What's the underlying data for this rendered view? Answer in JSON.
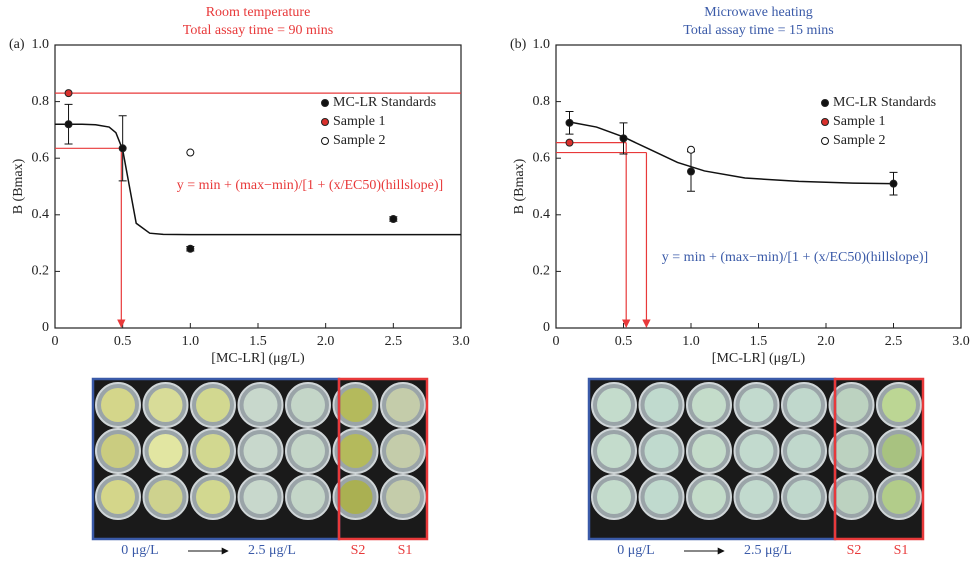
{
  "chart_data": [
    {
      "type": "scatter",
      "panel": "(a)",
      "title": "Room temperature",
      "subtitle": "Total assay time = 90 mins",
      "title_color": "#e8393a",
      "x_label": "[MC-LR] (μg/L)",
      "y_label": "B (Bmax)",
      "xlim": [
        0,
        3
      ],
      "xticks": [
        0,
        0.5,
        {
          "value": 1,
          "label": "1.0"
        },
        1.5,
        {
          "value": 2,
          "label": "2.0"
        },
        2.5,
        {
          "value": 3,
          "label": "3.0"
        }
      ],
      "ylim": [
        0,
        1
      ],
      "yticks": [
        0,
        0.2,
        0.4,
        0.6,
        0.8,
        {
          "value": 1,
          "label": "1.0"
        }
      ],
      "legend": "upper right",
      "series": [
        {
          "name": "MC-LR Standards",
          "color": "#111111",
          "marker": "filled",
          "x": [
            0.1,
            0.5,
            1.0,
            2.5
          ],
          "values": [
            0.72,
            0.635,
            0.28,
            0.385
          ],
          "errors": [
            0.07,
            0.115,
            0.008,
            0.008
          ]
        },
        {
          "name": "Sample 1",
          "color": "#d9302c",
          "marker": "filled",
          "x": [
            0.1
          ],
          "values": [
            0.83
          ]
        },
        {
          "name": "Sample 2",
          "color": "#111111",
          "marker": "open",
          "x": [
            1.0
          ],
          "values": [
            0.62
          ]
        }
      ],
      "fit": {
        "x": [
          0,
          0.1,
          0.2,
          0.3,
          0.4,
          0.45,
          0.5,
          0.55,
          0.6,
          0.7,
          0.8,
          1.0,
          1.5,
          2.0,
          2.5,
          3.0
        ],
        "y": [
          0.72,
          0.72,
          0.72,
          0.718,
          0.71,
          0.69,
          0.63,
          0.5,
          0.37,
          0.335,
          0.331,
          0.33,
          0.33,
          0.33,
          0.33,
          0.33
        ]
      },
      "hlines": [
        0.83
      ],
      "readouts": [
        {
          "y": 0.635,
          "x": 0.49
        }
      ],
      "equation": "y = min + (max−min)/[1 + (x/EC50)(hillslope)]",
      "plate_labels": {
        "start": "0 μg/L",
        "end": "2.5 μg/L",
        "s2": "S2",
        "s1": "S1"
      }
    },
    {
      "type": "scatter",
      "panel": "(b)",
      "title": "Microwave heating",
      "subtitle": "Total assay time = 15 mins",
      "title_color": "#3a5aa8",
      "x_label": "[MC-LR] (μg/L)",
      "y_label": "B (Bmax)",
      "xlim": [
        0,
        3
      ],
      "xticks": [
        0,
        0.5,
        {
          "value": 1,
          "label": "1.0"
        },
        1.5,
        {
          "value": 2,
          "label": "2.0"
        },
        2.5,
        {
          "value": 3,
          "label": "3.0"
        }
      ],
      "ylim": [
        0,
        1
      ],
      "yticks": [
        0,
        0.2,
        0.4,
        0.6,
        0.8,
        {
          "value": 1,
          "label": "1.0"
        }
      ],
      "legend": "upper right",
      "series": [
        {
          "name": "MC-LR Standards",
          "color": "#111111",
          "marker": "filled",
          "x": [
            0.1,
            0.5,
            1.0,
            2.5
          ],
          "values": [
            0.725,
            0.67,
            0.553,
            0.51
          ],
          "errors": [
            0.04,
            0.055,
            0.07,
            0.04
          ]
        },
        {
          "name": "Sample 1",
          "color": "#d9302c",
          "marker": "filled",
          "x": [
            0.1
          ],
          "values": [
            0.655
          ]
        },
        {
          "name": "Sample 2",
          "color": "#111111",
          "marker": "open",
          "x": [
            1.0
          ],
          "values": [
            0.63
          ]
        }
      ],
      "fit": {
        "x": [
          0.1,
          0.3,
          0.5,
          0.7,
          0.9,
          1.1,
          1.4,
          1.8,
          2.2,
          2.5
        ],
        "y": [
          0.728,
          0.71,
          0.675,
          0.63,
          0.585,
          0.555,
          0.53,
          0.518,
          0.512,
          0.51
        ]
      },
      "hlines": [],
      "readouts": [
        {
          "y": 0.655,
          "x": 0.52
        },
        {
          "y": 0.62,
          "x": 0.67
        }
      ],
      "equation": "y = min + (max−min)/[1 + (x/EC50)(hillslope)]",
      "plate_labels": {
        "start": "0 μg/L",
        "end": "2.5 μg/L",
        "s2": "S2",
        "s1": "S1"
      }
    }
  ]
}
